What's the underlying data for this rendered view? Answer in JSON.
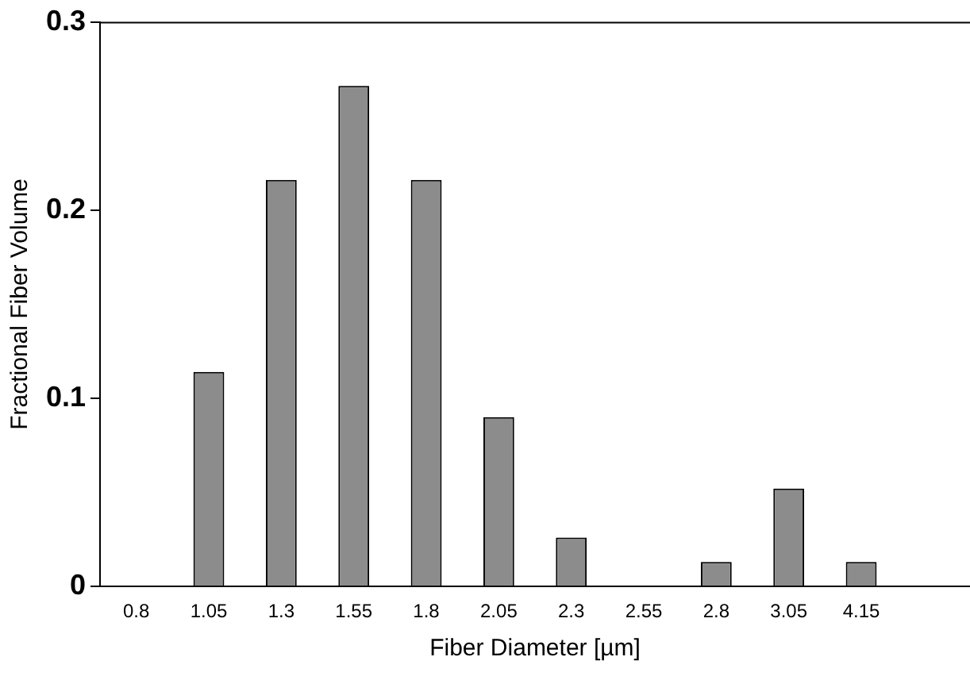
{
  "chart_data": {
    "type": "bar",
    "xlabel": "Fiber Diameter [µm]",
    "ylabel": "Fractional Fiber Volume",
    "categories": [
      "0.8",
      "1.05",
      "1.3",
      "1.55",
      "1.8",
      "2.05",
      "2.3",
      "2.55",
      "2.8",
      "3.05",
      "4.15",
      null
    ],
    "values": [
      0,
      0.114,
      0.216,
      0.266,
      0.216,
      0.09,
      0.026,
      0,
      0.013,
      0.052,
      0.013,
      null
    ],
    "color": "#8c8c8c",
    "ylim": [
      0,
      0.3
    ],
    "yticks": [
      0,
      0.1,
      0.2,
      0.3
    ],
    "grid": false
  }
}
